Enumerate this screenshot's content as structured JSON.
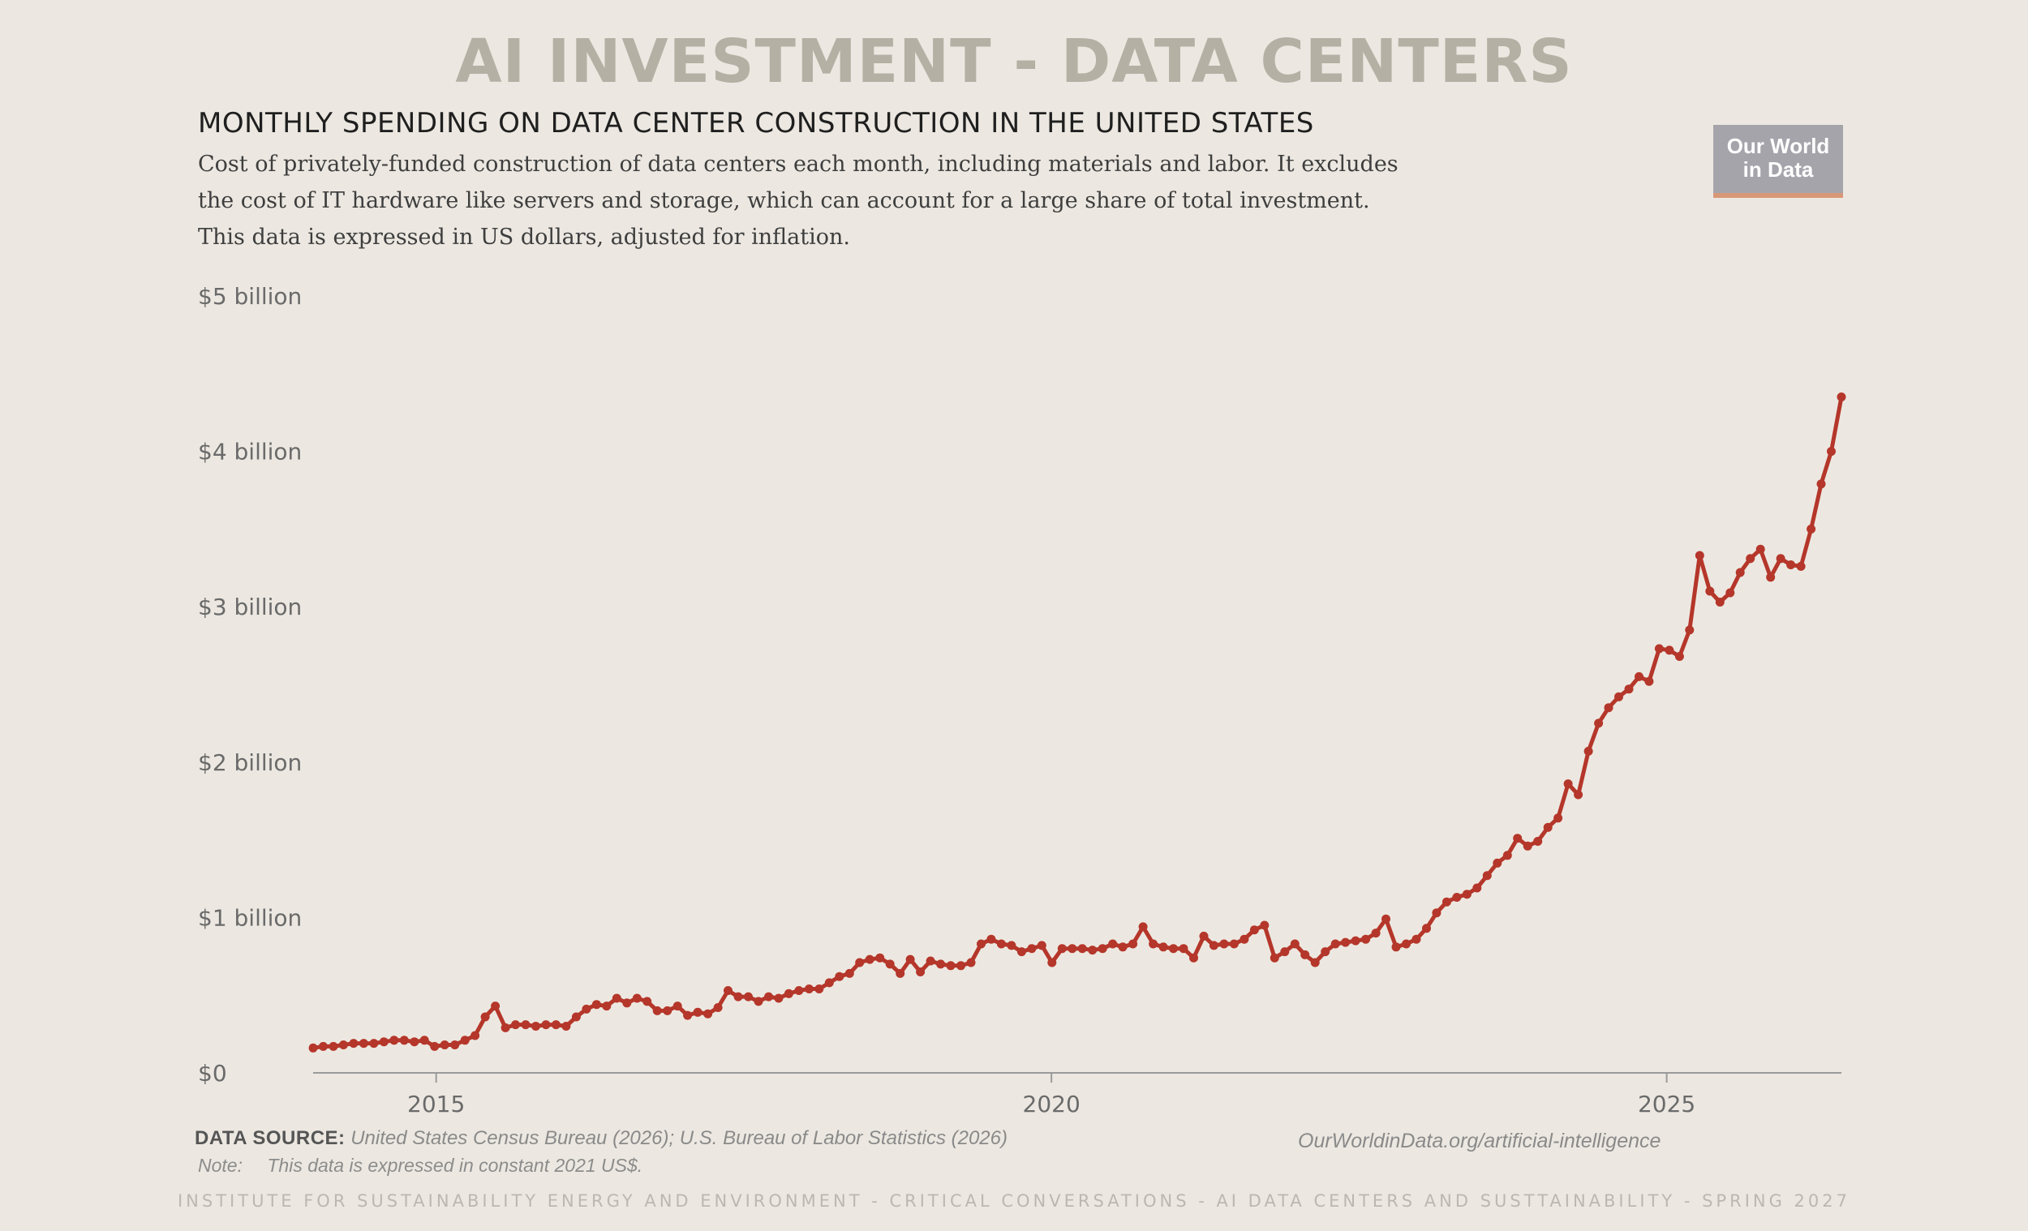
{
  "header": {
    "title": "AI INVESTMENT - DATA CENTERS",
    "subtitle": "MONTHLY SPENDING ON DATA CENTER CONSTRUCTION IN THE UNITED STATES",
    "description": "Cost of privately-funded construction of data centers each month, including materials and labor. It excludes the cost of IT hardware like servers and storage, which can account for a large share of total investment. This data is expressed in US dollars, adjusted for inflation."
  },
  "logo": {
    "line1": "Our World",
    "line2": "in Data"
  },
  "source": {
    "label": "DATA SOURCE:",
    "text": "United States Census Bureau (2026); U.S. Bureau of Labor Statistics (2026)",
    "note_label": "Note:",
    "note_text": "This data is expressed in constant 2021 US$.",
    "url": "OurWorldinData.org/artificial-intelligence"
  },
  "footer": "INSTITUTE FOR SUSTAINABILITY ENERGY AND ENVIRONMENT - CRITICAL CONVERSATIONS - AI DATA CENTERS AND SUSTTAINABILITY - SPRING 2027",
  "colors": {
    "line": "#b5362a",
    "background": "#ece8e1",
    "title": "#b4b0a4",
    "axis": "#8a8a8a"
  },
  "chart_data": {
    "type": "line",
    "title": "MONTHLY SPENDING ON DATA CENTER CONSTRUCTION IN THE UNITED STATES",
    "xlabel": "",
    "ylabel": "",
    "x_start": "2014-01",
    "x_end": "2026-06",
    "xlim": [
      2014.0,
      2026.42
    ],
    "ylim": [
      0,
      5
    ],
    "y_unit": "billion US$",
    "x_ticks": [
      {
        "value": 2015,
        "label": "2015"
      },
      {
        "value": 2020,
        "label": "2020"
      },
      {
        "value": 2025,
        "label": "2025"
      }
    ],
    "y_ticks": [
      {
        "value": 0,
        "label": "$0"
      },
      {
        "value": 1,
        "label": "$1 billion"
      },
      {
        "value": 2,
        "label": "$2 billion"
      },
      {
        "value": 3,
        "label": "$3 billion"
      },
      {
        "value": 4,
        "label": "$4 billion"
      },
      {
        "value": 5,
        "label": "$5 billion"
      }
    ],
    "grid": false,
    "legend": "none",
    "series": [
      {
        "values": [
          0.16,
          0.17,
          0.17,
          0.18,
          0.19,
          0.19,
          0.19,
          0.2,
          0.21,
          0.21,
          0.2,
          0.21,
          0.17,
          0.18,
          0.18,
          0.21,
          0.24,
          0.36,
          0.43,
          0.29,
          0.31,
          0.31,
          0.3,
          0.31,
          0.31,
          0.3,
          0.36,
          0.41,
          0.44,
          0.43,
          0.48,
          0.45,
          0.48,
          0.46,
          0.4,
          0.4,
          0.43,
          0.37,
          0.39,
          0.38,
          0.42,
          0.53,
          0.49,
          0.49,
          0.46,
          0.49,
          0.48,
          0.51,
          0.53,
          0.54,
          0.54,
          0.58,
          0.62,
          0.64,
          0.71,
          0.73,
          0.74,
          0.7,
          0.64,
          0.73,
          0.65,
          0.72,
          0.7,
          0.69,
          0.69,
          0.71,
          0.83,
          0.86,
          0.83,
          0.82,
          0.78,
          0.8,
          0.82,
          0.71,
          0.8,
          0.8,
          0.8,
          0.79,
          0.8,
          0.83,
          0.81,
          0.83,
          0.94,
          0.83,
          0.81,
          0.8,
          0.8,
          0.74,
          0.88,
          0.82,
          0.83,
          0.83,
          0.86,
          0.92,
          0.95,
          0.74,
          0.78,
          0.83,
          0.76,
          0.71,
          0.78,
          0.83,
          0.84,
          0.85,
          0.86,
          0.9,
          0.99,
          0.81,
          0.83,
          0.86,
          0.93,
          1.03,
          1.1,
          1.13,
          1.15,
          1.19,
          1.27,
          1.35,
          1.4,
          1.51,
          1.46,
          1.49,
          1.58,
          1.64,
          1.86,
          1.79,
          2.07,
          2.25,
          2.35,
          2.42,
          2.47,
          2.55,
          2.52,
          2.73,
          2.72,
          2.68,
          2.85,
          3.33,
          3.1,
          3.03,
          3.09,
          3.22,
          3.31,
          3.37,
          3.19,
          3.31,
          3.27,
          3.26,
          3.5,
          3.79,
          4.0,
          4.35
        ]
      }
    ]
  }
}
